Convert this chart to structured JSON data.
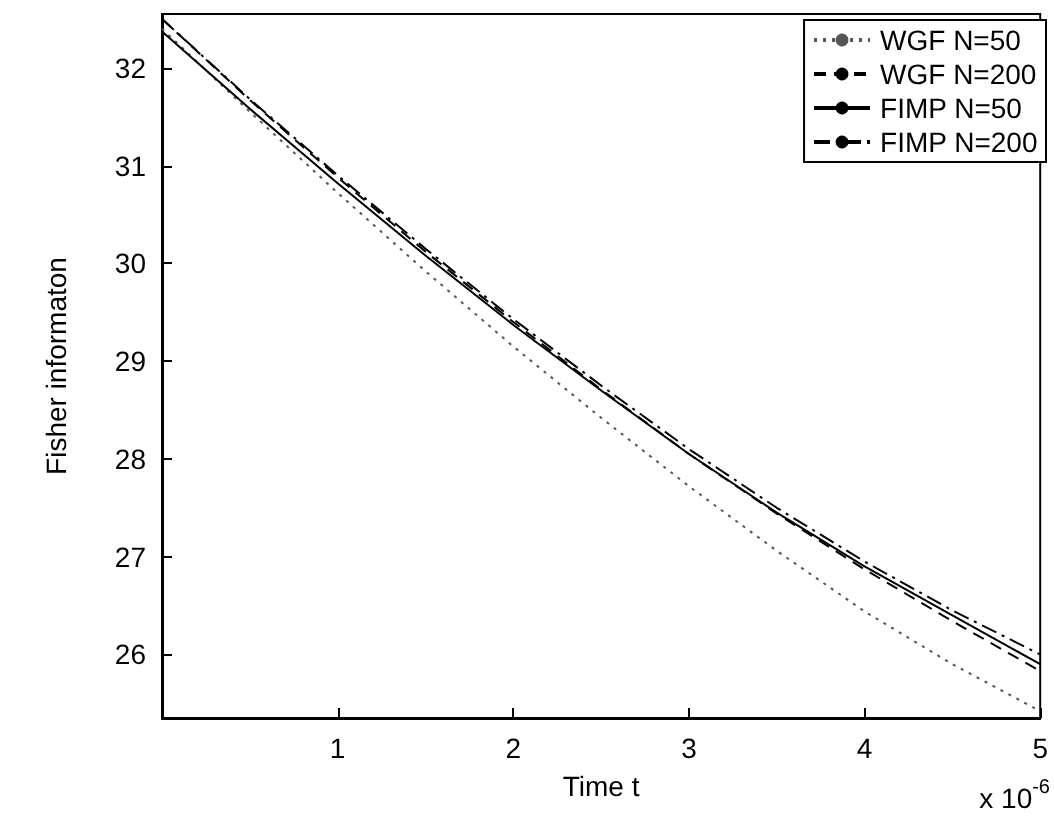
{
  "chart_data": {
    "type": "line",
    "xlabel": "Time t",
    "ylabel": "Fisher informaton",
    "x": [
      0,
      0.5,
      1,
      1.5,
      2,
      2.5,
      3,
      3.5,
      4,
      4.5,
      5
    ],
    "series": [
      {
        "name": "WGF N=50",
        "color": "#555555",
        "line_style": "dotted",
        "values": [
          32.4,
          31.55,
          30.72,
          29.92,
          29.15,
          28.42,
          27.72,
          27.06,
          26.44,
          25.9,
          25.42
        ]
      },
      {
        "name": "WGF N=200",
        "color": "#000000",
        "line_style": "dashed",
        "values": [
          32.5,
          31.67,
          30.88,
          30.12,
          29.4,
          28.71,
          28.05,
          27.44,
          26.87,
          26.34,
          25.83
        ]
      },
      {
        "name": "FIMP N=50",
        "color": "#000000",
        "line_style": "solid",
        "values": [
          32.37,
          31.58,
          30.82,
          30.08,
          29.37,
          28.7,
          28.05,
          27.45,
          26.9,
          26.4,
          25.9
        ]
      },
      {
        "name": "FIMP N=200",
        "color": "#000000",
        "line_style": "dashdot",
        "values": [
          32.5,
          31.68,
          30.9,
          30.15,
          29.43,
          28.75,
          28.1,
          27.5,
          26.95,
          26.45,
          26.0
        ]
      }
    ],
    "xlim": [
      0,
      5
    ],
    "xticks": [
      1,
      2,
      3,
      4,
      5
    ],
    "ylim": [
      25.35,
      32.55
    ],
    "yticks": [
      26,
      27,
      28,
      29,
      30,
      31,
      32
    ],
    "annotations": [
      "x 10$^{-6}$"
    ],
    "grid": false,
    "legend": "top right",
    "marker": "none"
  }
}
